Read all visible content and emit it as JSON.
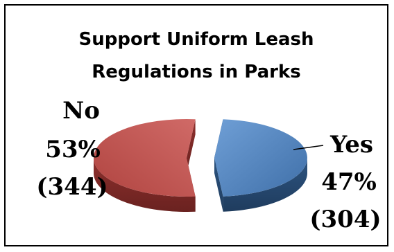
{
  "chart_data": {
    "type": "pie",
    "title": "Support Uniform Leash Regulations in Parks",
    "title_lines": [
      "Support Uniform Leash",
      "Regulations in Parks"
    ],
    "slices": [
      {
        "label": "Yes",
        "percent": 47,
        "percent_label": "47%",
        "count": 304,
        "count_label": "(304)",
        "color": "#4f81bd",
        "exploded": true
      },
      {
        "label": "No",
        "percent": 53,
        "percent_label": "53%",
        "count": 344,
        "count_label": "(344)",
        "color": "#c0504d",
        "exploded": true
      }
    ],
    "style": "3d-exploded",
    "legend": "none"
  }
}
